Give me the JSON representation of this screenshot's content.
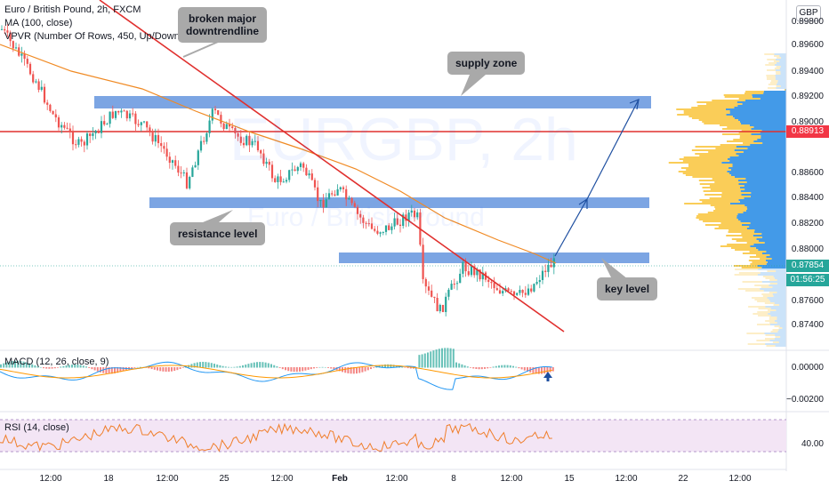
{
  "symbol": {
    "title": "Euro / British Pound, 2h, FXCM",
    "watermark_main": "EURGBP, 2h",
    "watermark_sub": "Euro / British Pound"
  },
  "indicators": {
    "ma": "MA (100, close)",
    "vpvr": "VPVR (Number Of Rows, 450, Up/Down, 70)",
    "macd": "MACD (12, 26, close, 9)",
    "rsi": "RSI (14, close)"
  },
  "currency": "GBP",
  "price_axis": {
    "labels": [
      "0.89600",
      "0.89400",
      "0.89200",
      "0.89000",
      "0.88600",
      "0.88400",
      "0.88200",
      "0.88000",
      "0.87600",
      "0.87400"
    ],
    "partial_top": "0.89800"
  },
  "macd_axis": {
    "labels": [
      "0.00000",
      "−0.00200"
    ]
  },
  "rsi_axis": {
    "labels": [
      "40.00"
    ]
  },
  "time_axis": {
    "labels": [
      "12:00",
      "18",
      "12:00",
      "25",
      "12:00",
      "Feb",
      "12:00",
      "8",
      "12:00",
      "12:00",
      "15",
      "12:00",
      "22",
      "12:00"
    ]
  },
  "badges": {
    "horizontal_line": {
      "value": "0.88913",
      "color": "#f23645"
    },
    "last_price": {
      "value": "0.87854",
      "color": "#26a69a"
    },
    "countdown": {
      "value": "01:56:25",
      "color": "#26a69a"
    }
  },
  "annotations": {
    "downtrend": {
      "line1": "broken major",
      "line2": "downtrendline"
    },
    "supply": "supply zone",
    "resistance": "resistance level",
    "key": "key level"
  },
  "colors": {
    "zone_fill": "#5b8fdc",
    "trendline": "#e0302e",
    "ma_line": "#f08a24",
    "forecast_arrow": "#1e4fa0",
    "candle_up": "#26a69a",
    "candle_down": "#ef5350",
    "macd_line": "#2196f3",
    "signal_line": "#ff9800",
    "rsi_line": "#f07e2a",
    "rsi_band": "#f3e5f5",
    "vp_up": "#2f8fe6",
    "vp_down": "#f9c846"
  }
}
